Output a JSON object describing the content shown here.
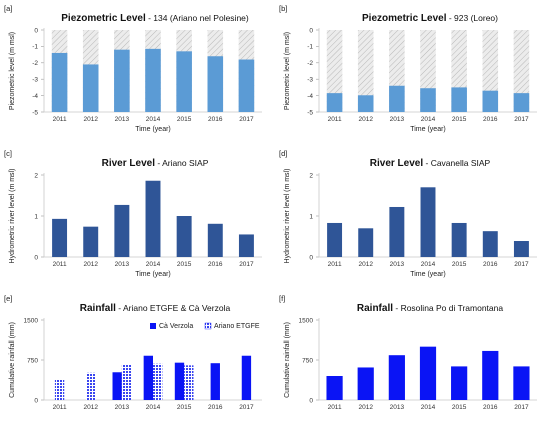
{
  "colors": {
    "piezo_bar": "#5b9bd5",
    "river_bar": "#2f5597",
    "rain_bar": "#0a14f5",
    "empty_fill": "#e4e4e4",
    "axis": "#c8c8c8"
  },
  "chart_data": [
    {
      "panel": "[a]",
      "type": "bar",
      "title_bold": "Piezometric Level",
      "title_rest": " - 134 (Ariano nel Polesine)",
      "xlabel": "Time (year)",
      "ylabel": "Piezometric level (m msl)",
      "ylim": [
        -5,
        0
      ],
      "yticks": [
        "0",
        "-1",
        "-2",
        "-3",
        "-4",
        "-5"
      ],
      "ytick_values": [
        0,
        -1,
        -2,
        -3,
        -4,
        -5
      ],
      "categories": [
        "2011",
        "2012",
        "2013",
        "2014",
        "2015",
        "2016",
        "2017"
      ],
      "values": [
        -1.4,
        -2.1,
        -1.2,
        -1.15,
        -1.3,
        -1.6,
        -1.8
      ],
      "style": "piezo"
    },
    {
      "panel": "[b]",
      "type": "bar",
      "title_bold": "Piezometric Level",
      "title_rest": " - 923 (Loreo)",
      "xlabel": "Time (year)",
      "ylabel": "Piezometric level (m msl)",
      "ylim": [
        -5,
        0
      ],
      "yticks": [
        "0",
        "-1",
        "-2",
        "-3",
        "-4",
        "-5"
      ],
      "ytick_values": [
        0,
        -1,
        -2,
        -3,
        -4,
        -5
      ],
      "categories": [
        "2011",
        "2012",
        "2013",
        "2014",
        "2015",
        "2016",
        "2017"
      ],
      "values": [
        -3.85,
        -3.98,
        -3.4,
        -3.55,
        -3.5,
        -3.7,
        -3.85
      ],
      "style": "piezo"
    },
    {
      "panel": "[c]",
      "type": "bar",
      "title_bold": "River Level",
      "title_rest": " - Ariano SIAP",
      "xlabel": "Time (year)",
      "ylabel": "Hydrometric river level (m msl)",
      "ylim": [
        0,
        2
      ],
      "yticks": [
        "0",
        "1",
        "2"
      ],
      "ytick_values": [
        0,
        1,
        2
      ],
      "categories": [
        "2011",
        "2012",
        "2013",
        "2014",
        "2015",
        "2016",
        "2017"
      ],
      "values": [
        0.93,
        0.74,
        1.27,
        1.86,
        1.0,
        0.81,
        0.55
      ],
      "style": "river"
    },
    {
      "panel": "[d]",
      "type": "bar",
      "title_bold": "River Level",
      "title_rest": " - Cavanella SIAP",
      "xlabel": "Time (year)",
      "ylabel": "Hydrometric river level (m msl)",
      "ylim": [
        0,
        2
      ],
      "yticks": [
        "0",
        "1",
        "2"
      ],
      "ytick_values": [
        0,
        1,
        2
      ],
      "categories": [
        "2011",
        "2012",
        "2013",
        "2014",
        "2015",
        "2016",
        "2017"
      ],
      "values": [
        0.83,
        0.7,
        1.22,
        1.7,
        0.83,
        0.63,
        0.39
      ],
      "style": "river"
    },
    {
      "panel": "[e]",
      "type": "bar",
      "title_bold": "Rainfall",
      "title_rest": " - Ariano ETGFE & Cà Verzola",
      "xlabel": "",
      "ylabel": "Cumulative rainfall (mm)",
      "ylim": [
        0,
        1500
      ],
      "yticks": [
        "0",
        "750",
        "1500"
      ],
      "ytick_values": [
        0,
        750,
        1500
      ],
      "categories": [
        "2011",
        "2012",
        "2013",
        "2014",
        "2015",
        "2016",
        "2017"
      ],
      "legend": [
        "Cà Verzola",
        "Ariano ETGFE"
      ],
      "series": [
        {
          "name": "Cà Verzola",
          "values": [
            null,
            null,
            520,
            830,
            700,
            690,
            830
          ]
        },
        {
          "name": "Ariano ETGFE",
          "values": [
            390,
            510,
            670,
            680,
            650,
            null,
            null
          ]
        }
      ],
      "style": "rain2"
    },
    {
      "panel": "[f]",
      "type": "bar",
      "title_bold": "Rainfall",
      "title_rest": " - Rosolina Po di Tramontana",
      "xlabel": "",
      "ylabel": "Cumulative rainfall (mm)",
      "ylim": [
        0,
        1500
      ],
      "yticks": [
        "0",
        "750",
        "1500"
      ],
      "ytick_values": [
        0,
        750,
        1500
      ],
      "categories": [
        "2011",
        "2012",
        "2013",
        "2014",
        "2015",
        "2016",
        "2017"
      ],
      "values": [
        450,
        610,
        840,
        1000,
        630,
        920,
        630
      ],
      "style": "rain"
    }
  ]
}
